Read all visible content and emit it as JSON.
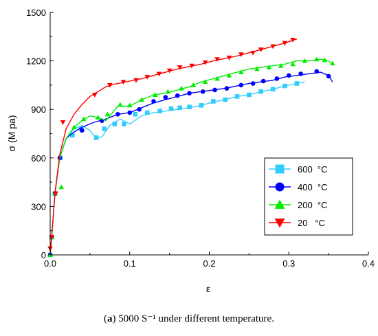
{
  "caption": {
    "label": "a",
    "text": " 5000 S⁻¹ under different temperature."
  },
  "chart_data": {
    "type": "line",
    "xlabel": "ε",
    "ylabel": "σ (M pa)",
    "xlim": [
      0,
      0.4
    ],
    "ylim": [
      0,
      1500
    ],
    "xticks": [
      0.0,
      0.1,
      0.2,
      0.3,
      0.4
    ],
    "xtick_labels": [
      "0.0",
      "0.1",
      "0.2",
      "0.3",
      "0.4"
    ],
    "yticks": [
      0,
      300,
      600,
      900,
      1200,
      1500
    ],
    "ytick_labels": [
      "0",
      "300",
      "600",
      "900",
      "1200",
      "1500"
    ],
    "grid": false,
    "legend_position": "right-middle",
    "series": [
      {
        "name": "600  °C",
        "color": "#33ccff",
        "marker": "square",
        "x": [
          0.0,
          0.002,
          0.006,
          0.012,
          0.02,
          0.03,
          0.04,
          0.05,
          0.058,
          0.065,
          0.075,
          0.088,
          0.1,
          0.115,
          0.13,
          0.145,
          0.16,
          0.175,
          0.19,
          0.205,
          0.22,
          0.235,
          0.25,
          0.265,
          0.28,
          0.295,
          0.31,
          0.32
        ],
        "y": [
          0,
          110,
          380,
          600,
          720,
          780,
          800,
          770,
          720,
          730,
          800,
          840,
          810,
          860,
          880,
          890,
          900,
          910,
          925,
          945,
          960,
          980,
          990,
          1010,
          1025,
          1045,
          1060,
          1070
        ],
        "markers_x": [
          0.0,
          0.002,
          0.006,
          0.013,
          0.028,
          0.039,
          0.058,
          0.068,
          0.081,
          0.093,
          0.107,
          0.122,
          0.138,
          0.152,
          0.163,
          0.175,
          0.19,
          0.205,
          0.22,
          0.235,
          0.25,
          0.265,
          0.28,
          0.295,
          0.31
        ],
        "markers_y": [
          0,
          110,
          380,
          600,
          740,
          780,
          725,
          780,
          810,
          810,
          870,
          880,
          890,
          905,
          910,
          915,
          925,
          950,
          960,
          980,
          990,
          1010,
          1025,
          1045,
          1060
        ]
      },
      {
        "name": "400  °C",
        "color": "#0000ff",
        "marker": "circle",
        "x": [
          0.0,
          0.002,
          0.006,
          0.012,
          0.02,
          0.03,
          0.04,
          0.055,
          0.07,
          0.085,
          0.1,
          0.115,
          0.13,
          0.145,
          0.16,
          0.175,
          0.19,
          0.205,
          0.22,
          0.235,
          0.25,
          0.265,
          0.28,
          0.295,
          0.31,
          0.325,
          0.34,
          0.35,
          0.355
        ],
        "y": [
          0,
          110,
          380,
          600,
          720,
          760,
          790,
          820,
          840,
          870,
          880,
          910,
          940,
          960,
          980,
          1000,
          1010,
          1020,
          1030,
          1045,
          1060,
          1070,
          1080,
          1100,
          1110,
          1120,
          1130,
          1110,
          1070
        ],
        "markers_x": [
          0.0,
          0.002,
          0.006,
          0.012,
          0.04,
          0.065,
          0.085,
          0.1,
          0.112,
          0.13,
          0.145,
          0.16,
          0.175,
          0.192,
          0.207,
          0.222,
          0.24,
          0.255,
          0.268,
          0.285,
          0.3,
          0.315,
          0.335,
          0.35
        ],
        "markers_y": [
          0,
          110,
          380,
          600,
          770,
          830,
          870,
          880,
          900,
          950,
          975,
          985,
          1000,
          1010,
          1020,
          1030,
          1050,
          1060,
          1075,
          1090,
          1110,
          1120,
          1135,
          1105
        ]
      },
      {
        "name": "200  °C",
        "color": "#00ee00",
        "marker": "triangle-up",
        "x": [
          0.0,
          0.002,
          0.006,
          0.012,
          0.02,
          0.03,
          0.04,
          0.05,
          0.06,
          0.07,
          0.085,
          0.1,
          0.115,
          0.13,
          0.145,
          0.16,
          0.175,
          0.19,
          0.205,
          0.22,
          0.235,
          0.25,
          0.265,
          0.28,
          0.295,
          0.31,
          0.325,
          0.34,
          0.35,
          0.355
        ],
        "y": [
          0,
          110,
          380,
          600,
          720,
          790,
          830,
          860,
          850,
          830,
          920,
          920,
          960,
          990,
          1000,
          1020,
          1040,
          1070,
          1090,
          1110,
          1130,
          1150,
          1160,
          1170,
          1180,
          1200,
          1200,
          1210,
          1200,
          1180
        ],
        "markers_x": [
          0.0,
          0.002,
          0.006,
          0.014,
          0.03,
          0.042,
          0.06,
          0.072,
          0.088,
          0.1,
          0.115,
          0.132,
          0.148,
          0.165,
          0.18,
          0.195,
          0.21,
          0.225,
          0.24,
          0.26,
          0.275,
          0.29,
          0.305,
          0.32,
          0.335,
          0.345,
          0.355
        ],
        "markers_y": [
          0,
          110,
          380,
          420,
          790,
          840,
          850,
          870,
          930,
          925,
          960,
          990,
          1010,
          1030,
          1050,
          1070,
          1090,
          1110,
          1130,
          1150,
          1160,
          1170,
          1180,
          1200,
          1210,
          1205,
          1185
        ]
      },
      {
        "name": "20   °C",
        "color": "#ff0000",
        "marker": "triangle-down",
        "x": [
          0.0,
          0.002,
          0.006,
          0.012,
          0.02,
          0.03,
          0.04,
          0.05,
          0.06,
          0.07,
          0.08,
          0.09,
          0.1,
          0.115,
          0.13,
          0.145,
          0.16,
          0.175,
          0.19,
          0.205,
          0.22,
          0.235,
          0.25,
          0.265,
          0.28,
          0.295,
          0.31
        ],
        "y": [
          0,
          120,
          380,
          620,
          780,
          870,
          930,
          980,
          1010,
          1040,
          1055,
          1065,
          1075,
          1090,
          1110,
          1130,
          1150,
          1165,
          1180,
          1200,
          1215,
          1230,
          1250,
          1270,
          1290,
          1310,
          1335
        ],
        "markers_x": [
          0.0,
          0.002,
          0.007,
          0.016,
          0.056,
          0.075,
          0.092,
          0.108,
          0.122,
          0.137,
          0.15,
          0.163,
          0.178,
          0.195,
          0.21,
          0.225,
          0.24,
          0.255,
          0.265,
          0.28,
          0.295,
          0.305
        ],
        "markers_y": [
          40,
          110,
          380,
          820,
          990,
          1050,
          1070,
          1080,
          1100,
          1120,
          1140,
          1160,
          1170,
          1190,
          1210,
          1220,
          1240,
          1250,
          1270,
          1290,
          1310,
          1330
        ]
      }
    ]
  }
}
